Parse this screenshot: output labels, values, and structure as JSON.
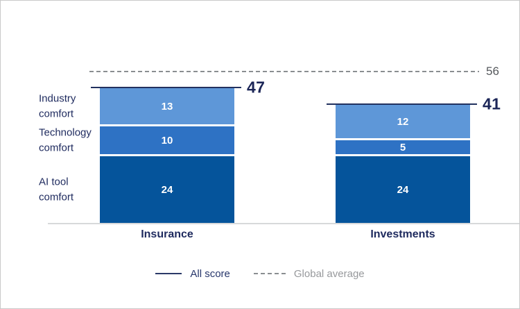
{
  "chart_data": {
    "type": "bar",
    "stacked": true,
    "title": "",
    "categories": [
      "Insurance",
      "Investments"
    ],
    "series": [
      {
        "name": "Industry comfort",
        "values": [
          13,
          12
        ],
        "color": "#5E97D8"
      },
      {
        "name": "Technology comfort",
        "values": [
          10,
          5
        ],
        "color": "#2E72C4"
      },
      {
        "name": "AI tool comfort",
        "values": [
          24,
          24
        ],
        "color": "#05549B"
      }
    ],
    "totals": [
      47,
      41
    ],
    "global_average": 56,
    "legend": [
      {
        "label": "All score",
        "style": "solid"
      },
      {
        "label": "Global average",
        "style": "dashed"
      }
    ],
    "axis": {
      "ymin": 0,
      "ymax_visible": 56,
      "gridlines": false
    },
    "colors": {
      "score_line": "#22315f",
      "total_text": "#1b2557",
      "average_line": "#8a8e91",
      "average_text": "#55585c",
      "category_text": "#1e2a5e",
      "row_label_text": "#1e2a5e",
      "segment_text": "#ffffff",
      "baseline": "#d7d9da",
      "background": "#ffffff"
    }
  }
}
